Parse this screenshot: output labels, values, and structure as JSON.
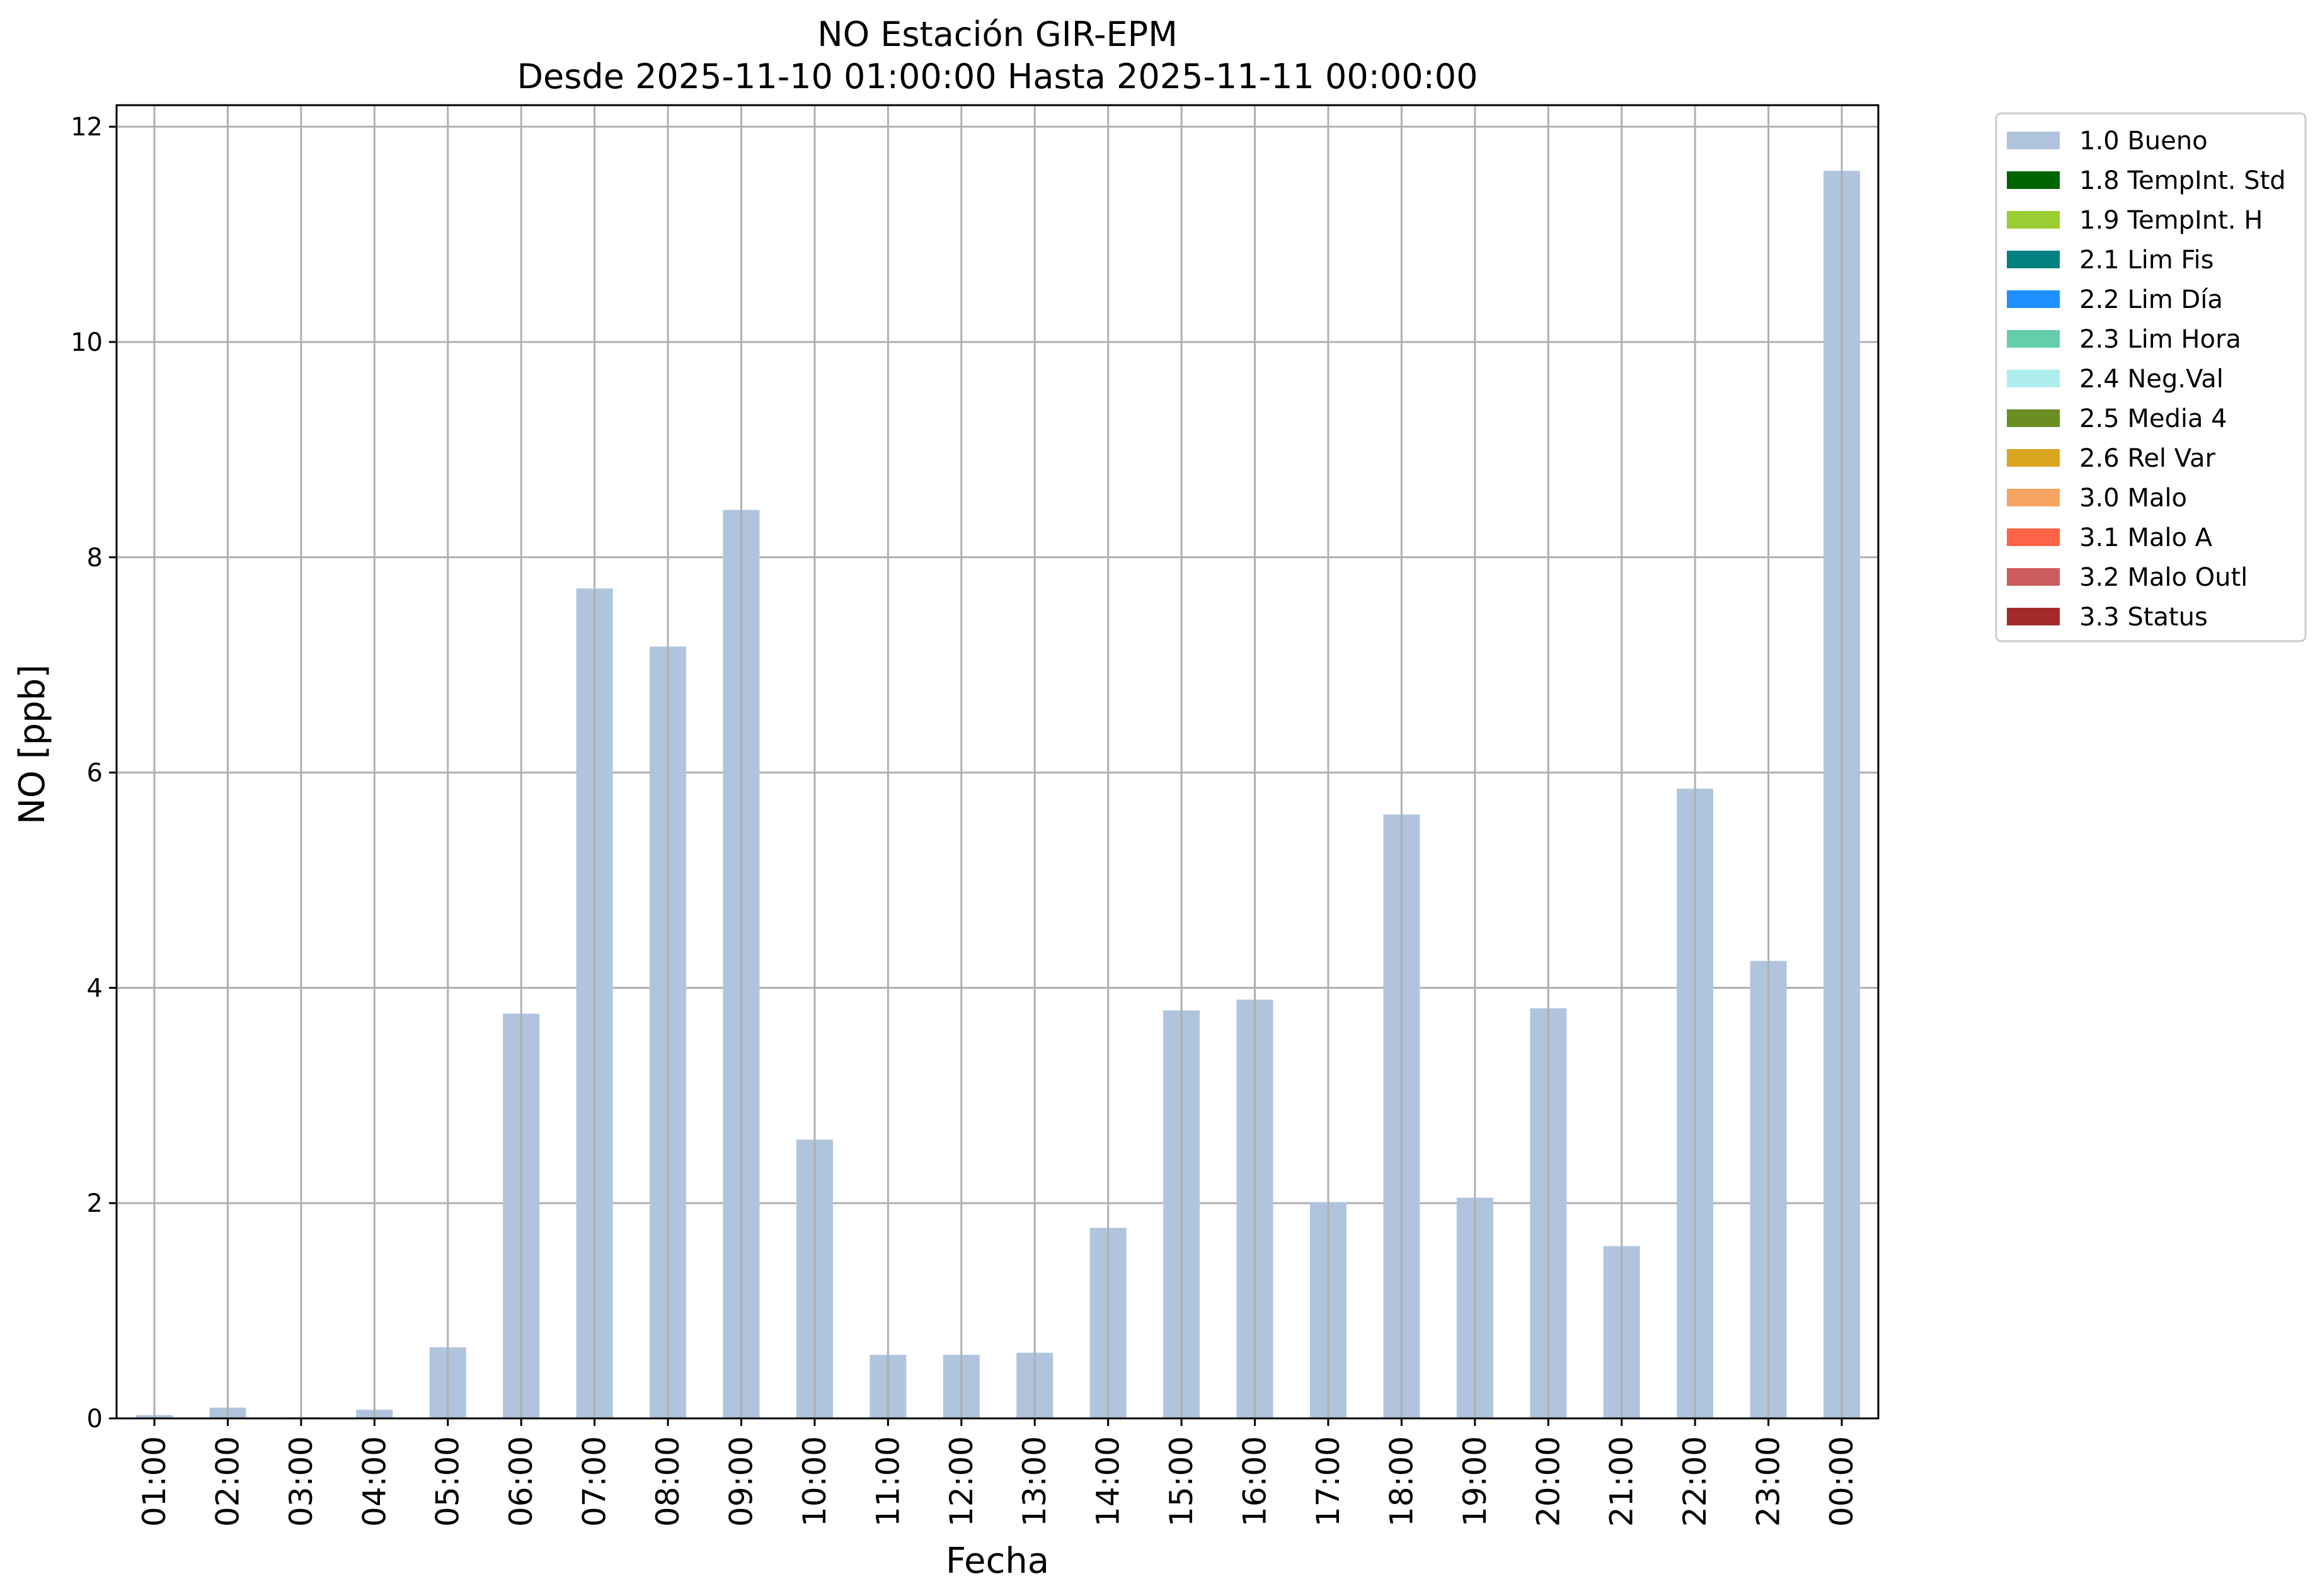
{
  "chart_data": {
    "type": "bar",
    "title": "NO Estación GIR-EPM",
    "subtitle": "Desde 2025-11-10 01:00:00 Hasta 2025-11-11 00:00:00",
    "xlabel": "Fecha",
    "ylabel": "NO [ppb]",
    "ylim": [
      0,
      12.2
    ],
    "yticks": [
      "0",
      "2",
      "4",
      "6",
      "8",
      "10",
      "12"
    ],
    "grid": true,
    "legend_position": "outside-right-top",
    "categories": [
      "01:00",
      "02:00",
      "03:00",
      "04:00",
      "05:00",
      "06:00",
      "07:00",
      "08:00",
      "09:00",
      "10:00",
      "11:00",
      "12:00",
      "13:00",
      "14:00",
      "15:00",
      "16:00",
      "17:00",
      "18:00",
      "19:00",
      "20:00",
      "21:00",
      "22:00",
      "23:00",
      "00:00"
    ],
    "series": [
      {
        "name": "1.0 Bueno",
        "color": "#b0c4de",
        "values": [
          0.03,
          0.1,
          0.01,
          0.08,
          0.66,
          3.76,
          7.71,
          7.17,
          8.44,
          2.59,
          0.59,
          0.59,
          0.61,
          1.77,
          3.79,
          3.89,
          2.01,
          5.61,
          2.05,
          3.81,
          1.6,
          5.85,
          4.25,
          11.59
        ]
      }
    ],
    "legend": [
      {
        "label": "1.0 Bueno",
        "color": "#b0c4de"
      },
      {
        "label": "1.8 TempInt. Std",
        "color": "#006400"
      },
      {
        "label": "1.9 TempInt. H",
        "color": "#9acd32"
      },
      {
        "label": "2.1 Lim Fis",
        "color": "#008080"
      },
      {
        "label": "2.2 Lim Día",
        "color": "#1e90ff"
      },
      {
        "label": "2.3 Lim Hora",
        "color": "#66cdaa"
      },
      {
        "label": "2.4 Neg.Val",
        "color": "#afeeee"
      },
      {
        "label": "2.5 Media 4",
        "color": "#6b8e23"
      },
      {
        "label": "2.6 Rel Var",
        "color": "#daa520"
      },
      {
        "label": "3.0 Malo",
        "color": "#f4a460"
      },
      {
        "label": "3.1 Malo A",
        "color": "#ff6347"
      },
      {
        "label": "3.2 Malo Outl",
        "color": "#cd5c5c"
      },
      {
        "label": "3.3 Status",
        "color": "#a52a2a"
      }
    ]
  }
}
